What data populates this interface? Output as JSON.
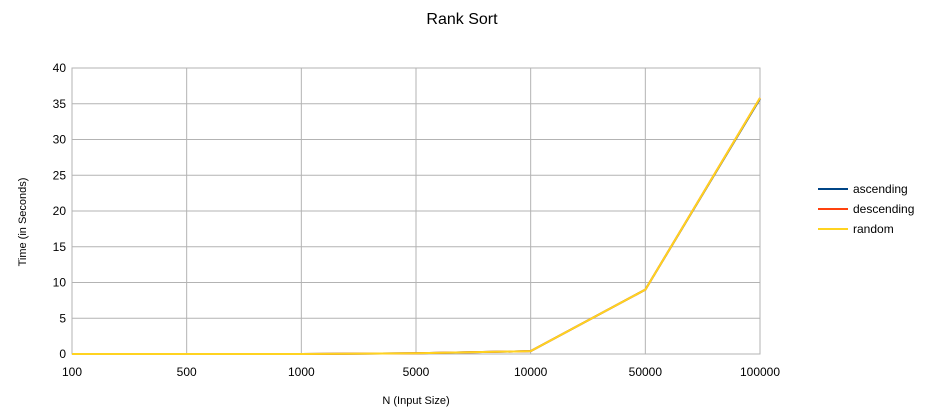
{
  "chart_data": {
    "type": "line",
    "title": "Rank Sort",
    "xlabel": "N (Input Size)",
    "ylabel": "Time (in Seconds)",
    "categories": [
      "100",
      "500",
      "1000",
      "5000",
      "10000",
      "50000",
      "100000"
    ],
    "ylim": [
      0,
      40
    ],
    "yticks": [
      0,
      5,
      10,
      15,
      20,
      25,
      30,
      35,
      40
    ],
    "grid": true,
    "legend_position": "right",
    "series": [
      {
        "name": "ascending",
        "color": "#004586",
        "values": [
          0.0,
          0.0,
          0.0,
          0.1,
          0.4,
          9.0,
          35.7
        ]
      },
      {
        "name": "descending",
        "color": "#ff420e",
        "values": [
          0.0,
          0.0,
          0.0,
          0.1,
          0.4,
          9.0,
          35.8
        ]
      },
      {
        "name": "random",
        "color": "#ffd320",
        "values": [
          0.0,
          0.0,
          0.0,
          0.1,
          0.4,
          9.0,
          35.8
        ]
      }
    ]
  }
}
